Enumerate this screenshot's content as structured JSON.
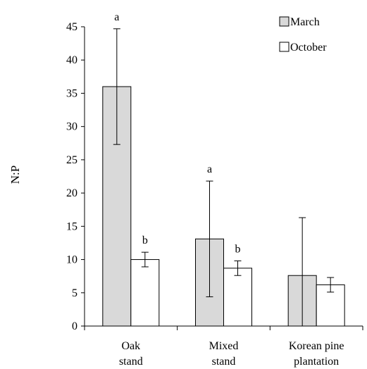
{
  "chart_data": {
    "type": "bar",
    "title": "",
    "xlabel": "",
    "ylabel": "N:P",
    "ylim": [
      0,
      45
    ],
    "yticks": [
      "0",
      "5",
      "10",
      "15",
      "20",
      "25",
      "30",
      "35",
      "40",
      "45"
    ],
    "categories": [
      [
        "Oak",
        "stand"
      ],
      [
        "Mixed",
        "stand"
      ],
      [
        "Korean pine",
        "plantation"
      ]
    ],
    "series": [
      {
        "name": "March",
        "color": "#d9d9d9",
        "values": [
          36.0,
          13.1,
          7.6
        ],
        "error": [
          8.7,
          8.7,
          8.7
        ],
        "letters": [
          "a",
          "a",
          ""
        ]
      },
      {
        "name": "October",
        "color": "#ffffff",
        "values": [
          10.0,
          8.7,
          6.2
        ],
        "error": [
          1.1,
          1.1,
          1.1
        ],
        "letters": [
          "b",
          "b",
          ""
        ]
      }
    ],
    "legend_position": "top-right",
    "grid": false
  }
}
